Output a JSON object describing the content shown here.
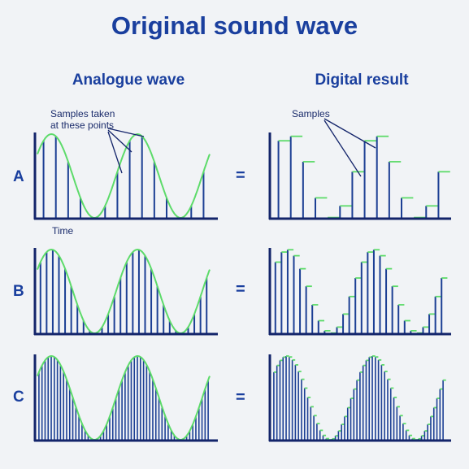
{
  "title": "Original sound wave",
  "headings": {
    "left": "Analogue wave",
    "right": "Digital result"
  },
  "rows": [
    {
      "label": "A",
      "samples": 14
    },
    {
      "label": "B",
      "samples": 28
    },
    {
      "label": "C",
      "samples": 56
    }
  ],
  "equals": "=",
  "annotations": {
    "samples_taken_1": "Samples taken",
    "samples_taken_2": "at these points",
    "samples": "Samples",
    "time": "Time"
  },
  "colors": {
    "axis": "#13246a",
    "sample_line": "#1c3f94",
    "wave": "#5ddb6a",
    "title": "#1a3f9e"
  }
}
